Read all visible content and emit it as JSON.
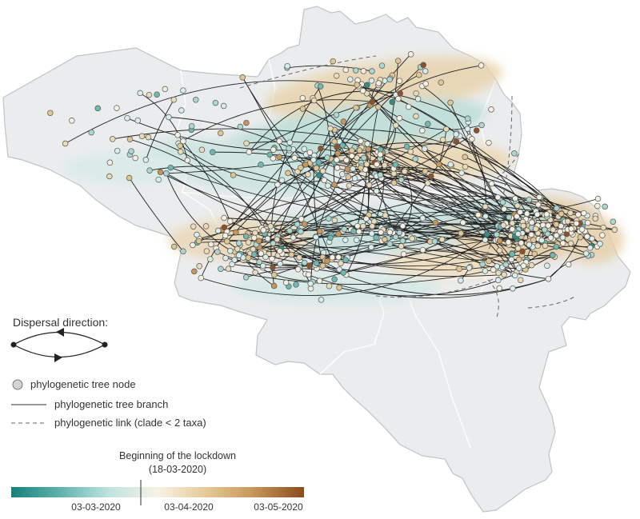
{
  "map": {
    "country": "Belgium",
    "basemap_color": "#ebeced",
    "border_color": "#bfc3c6",
    "province_border_color": "#ffffff"
  },
  "legend": {
    "direction_title": "Dispersal direction:",
    "node_label": "phylogenetic tree node",
    "branch_label": "phylogenetic tree branch",
    "link_label": "phylogenetic link (clade < 2 taxa)",
    "node_color": "#d3d3d3",
    "line_color": "#222222",
    "link_color": "#666666"
  },
  "colorbar": {
    "lockdown_title": "Beginning of the lockdown",
    "lockdown_date": "(18-03-2020)",
    "ticks": [
      "03-03-2020",
      "03-04-2020",
      "03-05-2020"
    ],
    "colors": [
      "#17807a",
      "#5fb3ad",
      "#bfe3e0",
      "#f7f3e6",
      "#e5c996",
      "#c59556",
      "#8a4b1c"
    ]
  }
}
